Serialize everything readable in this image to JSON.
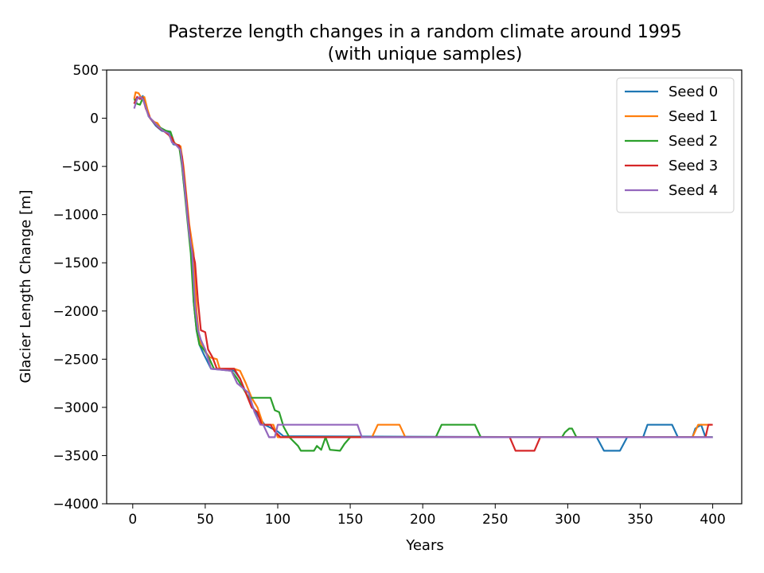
{
  "chart_data": {
    "type": "line",
    "title": "Pasterze length changes in a random climate around 1995",
    "subtitle": "(with unique samples)",
    "xlabel": "Years",
    "ylabel": "Glacier Length Change [m]",
    "xlim": [
      -18,
      420
    ],
    "ylim": [
      -4000,
      500
    ],
    "xticks": [
      0,
      50,
      100,
      150,
      200,
      250,
      300,
      350,
      400
    ],
    "yticks": [
      500,
      0,
      -500,
      -1000,
      -1500,
      -2000,
      -2500,
      -3000,
      -3500,
      -4000
    ],
    "xtick_labels": [
      "0",
      "50",
      "100",
      "150",
      "200",
      "250",
      "300",
      "350",
      "400"
    ],
    "ytick_labels": [
      "500",
      "0",
      "−500",
      "−1000",
      "−1500",
      "−2000",
      "−2500",
      "−3000",
      "−3500",
      "−4000"
    ],
    "grid": false,
    "legend": "top-right",
    "series": [
      {
        "name": "Seed 0",
        "color": "#1f77b4",
        "points": [
          [
            1,
            150
          ],
          [
            3,
            220
          ],
          [
            5,
            200
          ],
          [
            7,
            230
          ],
          [
            9,
            130
          ],
          [
            11,
            20
          ],
          [
            14,
            -40
          ],
          [
            16,
            -80
          ],
          [
            20,
            -130
          ],
          [
            25,
            -150
          ],
          [
            28,
            -270
          ],
          [
            31,
            -280
          ],
          [
            33,
            -320
          ],
          [
            35,
            -650
          ],
          [
            37,
            -900
          ],
          [
            39,
            -1200
          ],
          [
            41,
            -1400
          ],
          [
            42,
            -1900
          ],
          [
            44,
            -2200
          ],
          [
            46,
            -2350
          ],
          [
            49,
            -2450
          ],
          [
            54,
            -2600
          ],
          [
            70,
            -2620
          ],
          [
            74,
            -2700
          ],
          [
            78,
            -2850
          ],
          [
            83,
            -3000
          ],
          [
            87,
            -3100
          ],
          [
            91,
            -3180
          ],
          [
            100,
            -3250
          ],
          [
            104,
            -3300
          ],
          [
            320,
            -3310
          ],
          [
            325,
            -3450
          ],
          [
            336,
            -3450
          ],
          [
            341,
            -3310
          ],
          [
            352,
            -3310
          ],
          [
            355,
            -3180
          ],
          [
            372,
            -3180
          ],
          [
            376,
            -3310
          ],
          [
            386,
            -3310
          ],
          [
            388,
            -3220
          ],
          [
            392,
            -3180
          ],
          [
            395,
            -3310
          ],
          [
            400,
            -3310
          ]
        ]
      },
      {
        "name": "Seed 1",
        "color": "#ff7f0e",
        "points": [
          [
            1,
            200
          ],
          [
            2,
            270
          ],
          [
            4,
            260
          ],
          [
            6,
            210
          ],
          [
            8,
            220
          ],
          [
            10,
            100
          ],
          [
            12,
            0
          ],
          [
            15,
            -40
          ],
          [
            17,
            -50
          ],
          [
            20,
            -120
          ],
          [
            24,
            -150
          ],
          [
            27,
            -230
          ],
          [
            30,
            -270
          ],
          [
            33,
            -290
          ],
          [
            35,
            -500
          ],
          [
            37,
            -800
          ],
          [
            39,
            -1100
          ],
          [
            42,
            -1400
          ],
          [
            44,
            -2000
          ],
          [
            46,
            -2300
          ],
          [
            49,
            -2400
          ],
          [
            53,
            -2480
          ],
          [
            58,
            -2500
          ],
          [
            60,
            -2600
          ],
          [
            70,
            -2600
          ],
          [
            74,
            -2620
          ],
          [
            78,
            -2750
          ],
          [
            82,
            -2900
          ],
          [
            86,
            -3000
          ],
          [
            90,
            -3180
          ],
          [
            97,
            -3180
          ],
          [
            100,
            -3310
          ],
          [
            165,
            -3310
          ],
          [
            169,
            -3180
          ],
          [
            184,
            -3180
          ],
          [
            188,
            -3310
          ],
          [
            386,
            -3310
          ],
          [
            390,
            -3180
          ],
          [
            399,
            -3180
          ]
        ]
      },
      {
        "name": "Seed 2",
        "color": "#2ca02c",
        "points": [
          [
            1,
            200
          ],
          [
            3,
            150
          ],
          [
            5,
            140
          ],
          [
            7,
            210
          ],
          [
            9,
            110
          ],
          [
            11,
            20
          ],
          [
            15,
            -50
          ],
          [
            18,
            -90
          ],
          [
            23,
            -130
          ],
          [
            26,
            -140
          ],
          [
            29,
            -270
          ],
          [
            32,
            -290
          ],
          [
            34,
            -500
          ],
          [
            36,
            -800
          ],
          [
            38,
            -1100
          ],
          [
            40,
            -1400
          ],
          [
            42,
            -1900
          ],
          [
            44,
            -2200
          ],
          [
            46,
            -2350
          ],
          [
            49,
            -2400
          ],
          [
            53,
            -2500
          ],
          [
            56,
            -2600
          ],
          [
            68,
            -2620
          ],
          [
            72,
            -2700
          ],
          [
            76,
            -2800
          ],
          [
            80,
            -2900
          ],
          [
            95,
            -2900
          ],
          [
            98,
            -3030
          ],
          [
            101,
            -3050
          ],
          [
            104,
            -3200
          ],
          [
            108,
            -3310
          ],
          [
            114,
            -3400
          ],
          [
            116,
            -3450
          ],
          [
            125,
            -3450
          ],
          [
            127,
            -3400
          ],
          [
            130,
            -3440
          ],
          [
            133,
            -3310
          ],
          [
            136,
            -3440
          ],
          [
            143,
            -3450
          ],
          [
            146,
            -3380
          ],
          [
            150,
            -3310
          ],
          [
            209,
            -3310
          ],
          [
            213,
            -3180
          ],
          [
            236,
            -3180
          ],
          [
            240,
            -3310
          ],
          [
            296,
            -3310
          ],
          [
            298,
            -3260
          ],
          [
            301,
            -3220
          ],
          [
            303,
            -3220
          ],
          [
            306,
            -3310
          ],
          [
            400,
            -3310
          ]
        ]
      },
      {
        "name": "Seed 3",
        "color": "#d62728",
        "points": [
          [
            1,
            150
          ],
          [
            3,
            220
          ],
          [
            5,
            200
          ],
          [
            7,
            210
          ],
          [
            9,
            100
          ],
          [
            12,
            0
          ],
          [
            15,
            -50
          ],
          [
            18,
            -100
          ],
          [
            22,
            -140
          ],
          [
            27,
            -200
          ],
          [
            29,
            -270
          ],
          [
            32,
            -280
          ],
          [
            34,
            -400
          ],
          [
            36,
            -700
          ],
          [
            38,
            -1000
          ],
          [
            40,
            -1300
          ],
          [
            43,
            -1500
          ],
          [
            45,
            -1900
          ],
          [
            47,
            -2200
          ],
          [
            50,
            -2220
          ],
          [
            52,
            -2400
          ],
          [
            55,
            -2480
          ],
          [
            58,
            -2600
          ],
          [
            70,
            -2600
          ],
          [
            74,
            -2700
          ],
          [
            78,
            -2850
          ],
          [
            82,
            -3000
          ],
          [
            86,
            -3050
          ],
          [
            89,
            -3180
          ],
          [
            95,
            -3180
          ],
          [
            98,
            -3250
          ],
          [
            102,
            -3310
          ],
          [
            260,
            -3310
          ],
          [
            264,
            -3450
          ],
          [
            277,
            -3450
          ],
          [
            281,
            -3310
          ],
          [
            395,
            -3310
          ],
          [
            397,
            -3180
          ],
          [
            400,
            -3180
          ]
        ]
      },
      {
        "name": "Seed 4",
        "color": "#9467bd",
        "points": [
          [
            1,
            100
          ],
          [
            3,
            200
          ],
          [
            5,
            220
          ],
          [
            7,
            200
          ],
          [
            9,
            110
          ],
          [
            11,
            20
          ],
          [
            14,
            -30
          ],
          [
            17,
            -80
          ],
          [
            21,
            -130
          ],
          [
            25,
            -160
          ],
          [
            27,
            -250
          ],
          [
            30,
            -280
          ],
          [
            33,
            -330
          ],
          [
            35,
            -600
          ],
          [
            37,
            -900
          ],
          [
            39,
            -1200
          ],
          [
            41,
            -1400
          ],
          [
            43,
            -1950
          ],
          [
            45,
            -2200
          ],
          [
            47,
            -2300
          ],
          [
            50,
            -2400
          ],
          [
            54,
            -2600
          ],
          [
            68,
            -2620
          ],
          [
            72,
            -2750
          ],
          [
            76,
            -2800
          ],
          [
            80,
            -2850
          ],
          [
            84,
            -3050
          ],
          [
            88,
            -3180
          ],
          [
            90,
            -3180
          ],
          [
            94,
            -3310
          ],
          [
            98,
            -3310
          ],
          [
            100,
            -3180
          ],
          [
            155,
            -3180
          ],
          [
            158,
            -3310
          ],
          [
            400,
            -3310
          ]
        ]
      }
    ]
  }
}
